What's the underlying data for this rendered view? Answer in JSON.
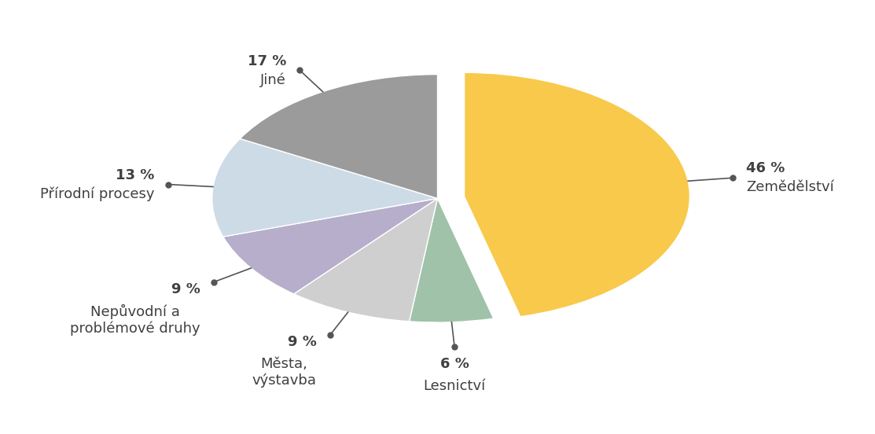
{
  "chart_data": {
    "type": "pie",
    "categories": [
      "Zemědělství",
      "Lesnictví",
      "Města,\nvýstavba",
      "Nepůvodní a\nproblémové druhy",
      "Přírodní procesy",
      "Jiné"
    ],
    "values": [
      46,
      6,
      9,
      9,
      13,
      17
    ],
    "value_labels": [
      "46 %",
      "6 %",
      "9 %",
      "9 %",
      "13 %",
      "17 %"
    ],
    "colors": [
      "#f8c94a",
      "#a0c2a9",
      "#cfcfcf",
      "#b6aecb",
      "#cddbe7",
      "#9b9b9b"
    ],
    "data_labels": true
  }
}
